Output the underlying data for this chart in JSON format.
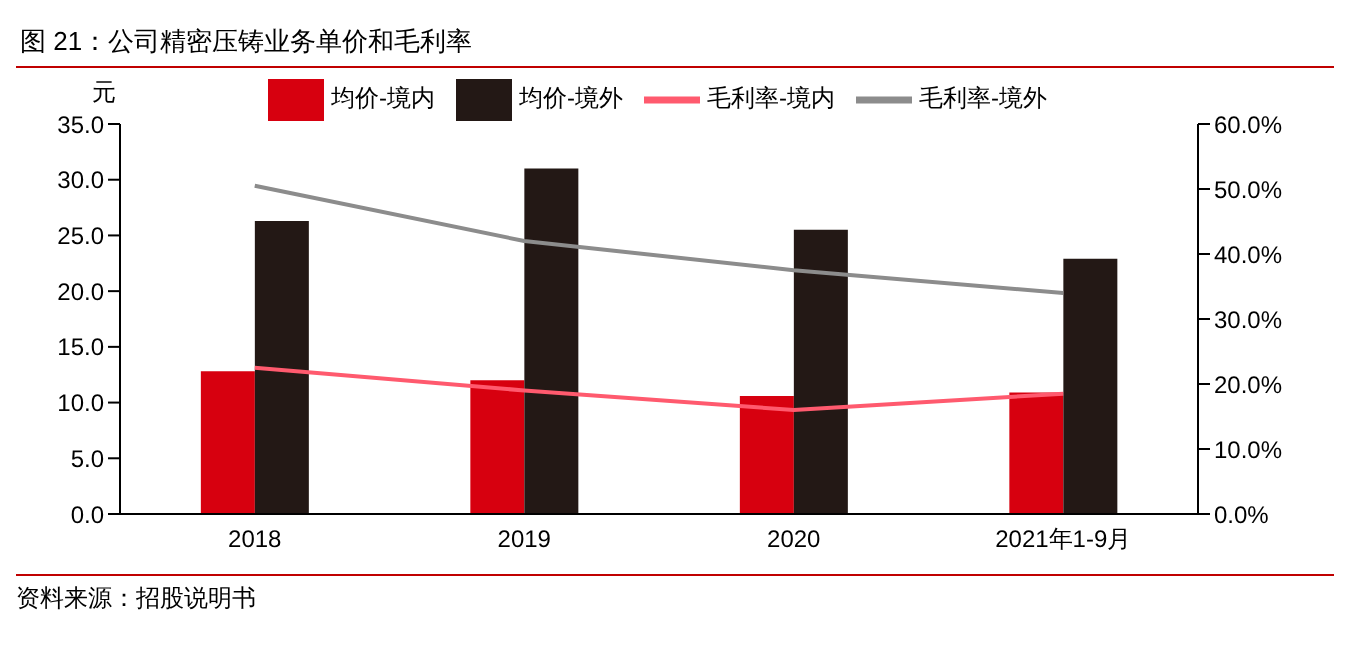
{
  "chart_data": {
    "type": "bar",
    "title": "图 21：公司精密压铸业务单价和毛利率",
    "ylabel": "元",
    "annotations": [
      "资料来源：招股说明书"
    ],
    "categories": [
      "2018",
      "2019",
      "2020",
      "2021年1-9月"
    ],
    "series": [
      {
        "name": "均价-境内",
        "color": "#d7000f",
        "values": [
          12.8,
          12.0,
          10.6,
          10.9
        ]
      },
      {
        "name": "均价-境外",
        "color": "#231815",
        "values": [
          26.3,
          31.0,
          25.5,
          22.9
        ]
      },
      {
        "name": "毛利率-境内",
        "type": "line",
        "axis": "y2",
        "color": "#ff5a6e",
        "values": [
          22.5,
          19.0,
          16.0,
          18.5
        ]
      },
      {
        "name": "毛利率-境外",
        "type": "line",
        "axis": "y2",
        "color": "#8c8c8c",
        "values": [
          50.5,
          42.0,
          37.5,
          34.0
        ]
      }
    ],
    "ylim": [
      0,
      35
    ],
    "yticks": [
      {
        "value": 0,
        "label": "0.0"
      },
      {
        "value": 5,
        "label": "5.0"
      },
      {
        "value": 10,
        "label": "10.0"
      },
      {
        "value": 15,
        "label": "15.0"
      },
      {
        "value": 20,
        "label": "20.0"
      },
      {
        "value": 25,
        "label": "25.0"
      },
      {
        "value": 30,
        "label": "30.0"
      },
      {
        "value": 35,
        "label": "35.0"
      }
    ],
    "y2lim": [
      0,
      60
    ],
    "y2ticks": [
      {
        "value": 0,
        "label": "0.0%"
      },
      {
        "value": 10,
        "label": "10.0%"
      },
      {
        "value": 20,
        "label": "20.0%"
      },
      {
        "value": 30,
        "label": "30.0%"
      },
      {
        "value": 40,
        "label": "40.0%"
      },
      {
        "value": 50,
        "label": "50.0%"
      },
      {
        "value": 60,
        "label": "60.0%"
      }
    ],
    "legend": "top",
    "grid": false,
    "marker": "none",
    "line_style": "solid"
  }
}
